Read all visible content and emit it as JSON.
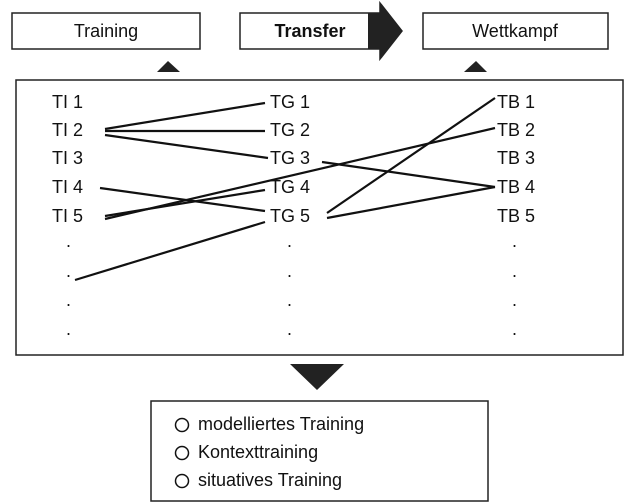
{
  "header": {
    "left": "Training",
    "middle": "Transfer",
    "right": "Wettkampf"
  },
  "columns": [
    {
      "items": [
        "TI 1",
        "TI 2",
        "TI 3",
        "TI 4",
        "TI 5",
        ".",
        ".",
        ".",
        "."
      ]
    },
    {
      "items": [
        "TG 1",
        "TG 2",
        "TG 3",
        "TG 4",
        "TG 5",
        ".",
        ".",
        ".",
        "."
      ]
    },
    {
      "items": [
        "TB 1",
        "TB 2",
        "TB 3",
        "TB 4",
        "TB 5",
        ".",
        ".",
        ".",
        "."
      ]
    }
  ],
  "options": [
    "modelliertes Training",
    "Kontexttraining",
    "situatives Training"
  ]
}
